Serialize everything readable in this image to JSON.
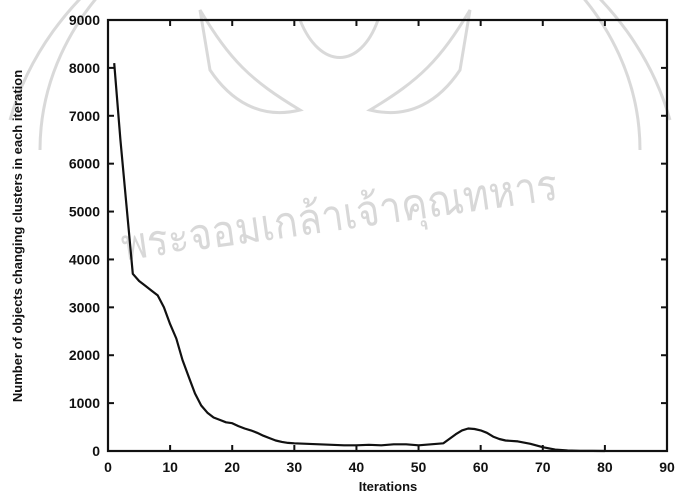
{
  "chart_data": {
    "type": "line",
    "title": "",
    "xlabel": "Iterations",
    "ylabel": "Number of objects changing clusters in each iteration",
    "xlim": [
      0,
      90
    ],
    "ylim": [
      0,
      9000
    ],
    "xticks": [
      0,
      10,
      20,
      30,
      40,
      50,
      60,
      70,
      80,
      90
    ],
    "yticks": [
      0,
      1000,
      2000,
      3000,
      4000,
      5000,
      6000,
      7000,
      8000,
      9000
    ],
    "grid": false,
    "series": [
      {
        "x": [
          1,
          2,
          3,
          4,
          5,
          6,
          7,
          8,
          9,
          10,
          11,
          12,
          13,
          14,
          15,
          16,
          17,
          18,
          19,
          20,
          21,
          22,
          23,
          24,
          25,
          26,
          27,
          28,
          29,
          30,
          32,
          34,
          36,
          38,
          40,
          42,
          44,
          46,
          48,
          50,
          52,
          54,
          56,
          57,
          58,
          59,
          60,
          61,
          62,
          63,
          64,
          66,
          68,
          70,
          72,
          74,
          76,
          78,
          80
        ],
        "y": [
          8100,
          6500,
          5100,
          3700,
          3550,
          3450,
          3350,
          3250,
          3000,
          2650,
          2350,
          1900,
          1550,
          1200,
          950,
          800,
          700,
          650,
          600,
          580,
          520,
          470,
          430,
          380,
          320,
          270,
          220,
          190,
          170,
          160,
          150,
          140,
          130,
          120,
          120,
          130,
          120,
          140,
          140,
          120,
          140,
          160,
          350,
          430,
          470,
          460,
          430,
          380,
          300,
          250,
          220,
          200,
          150,
          80,
          30,
          10,
          5,
          2,
          0
        ]
      }
    ],
    "watermark_text": "พระจอมเกล้าเจ้าคุณทหาร"
  }
}
